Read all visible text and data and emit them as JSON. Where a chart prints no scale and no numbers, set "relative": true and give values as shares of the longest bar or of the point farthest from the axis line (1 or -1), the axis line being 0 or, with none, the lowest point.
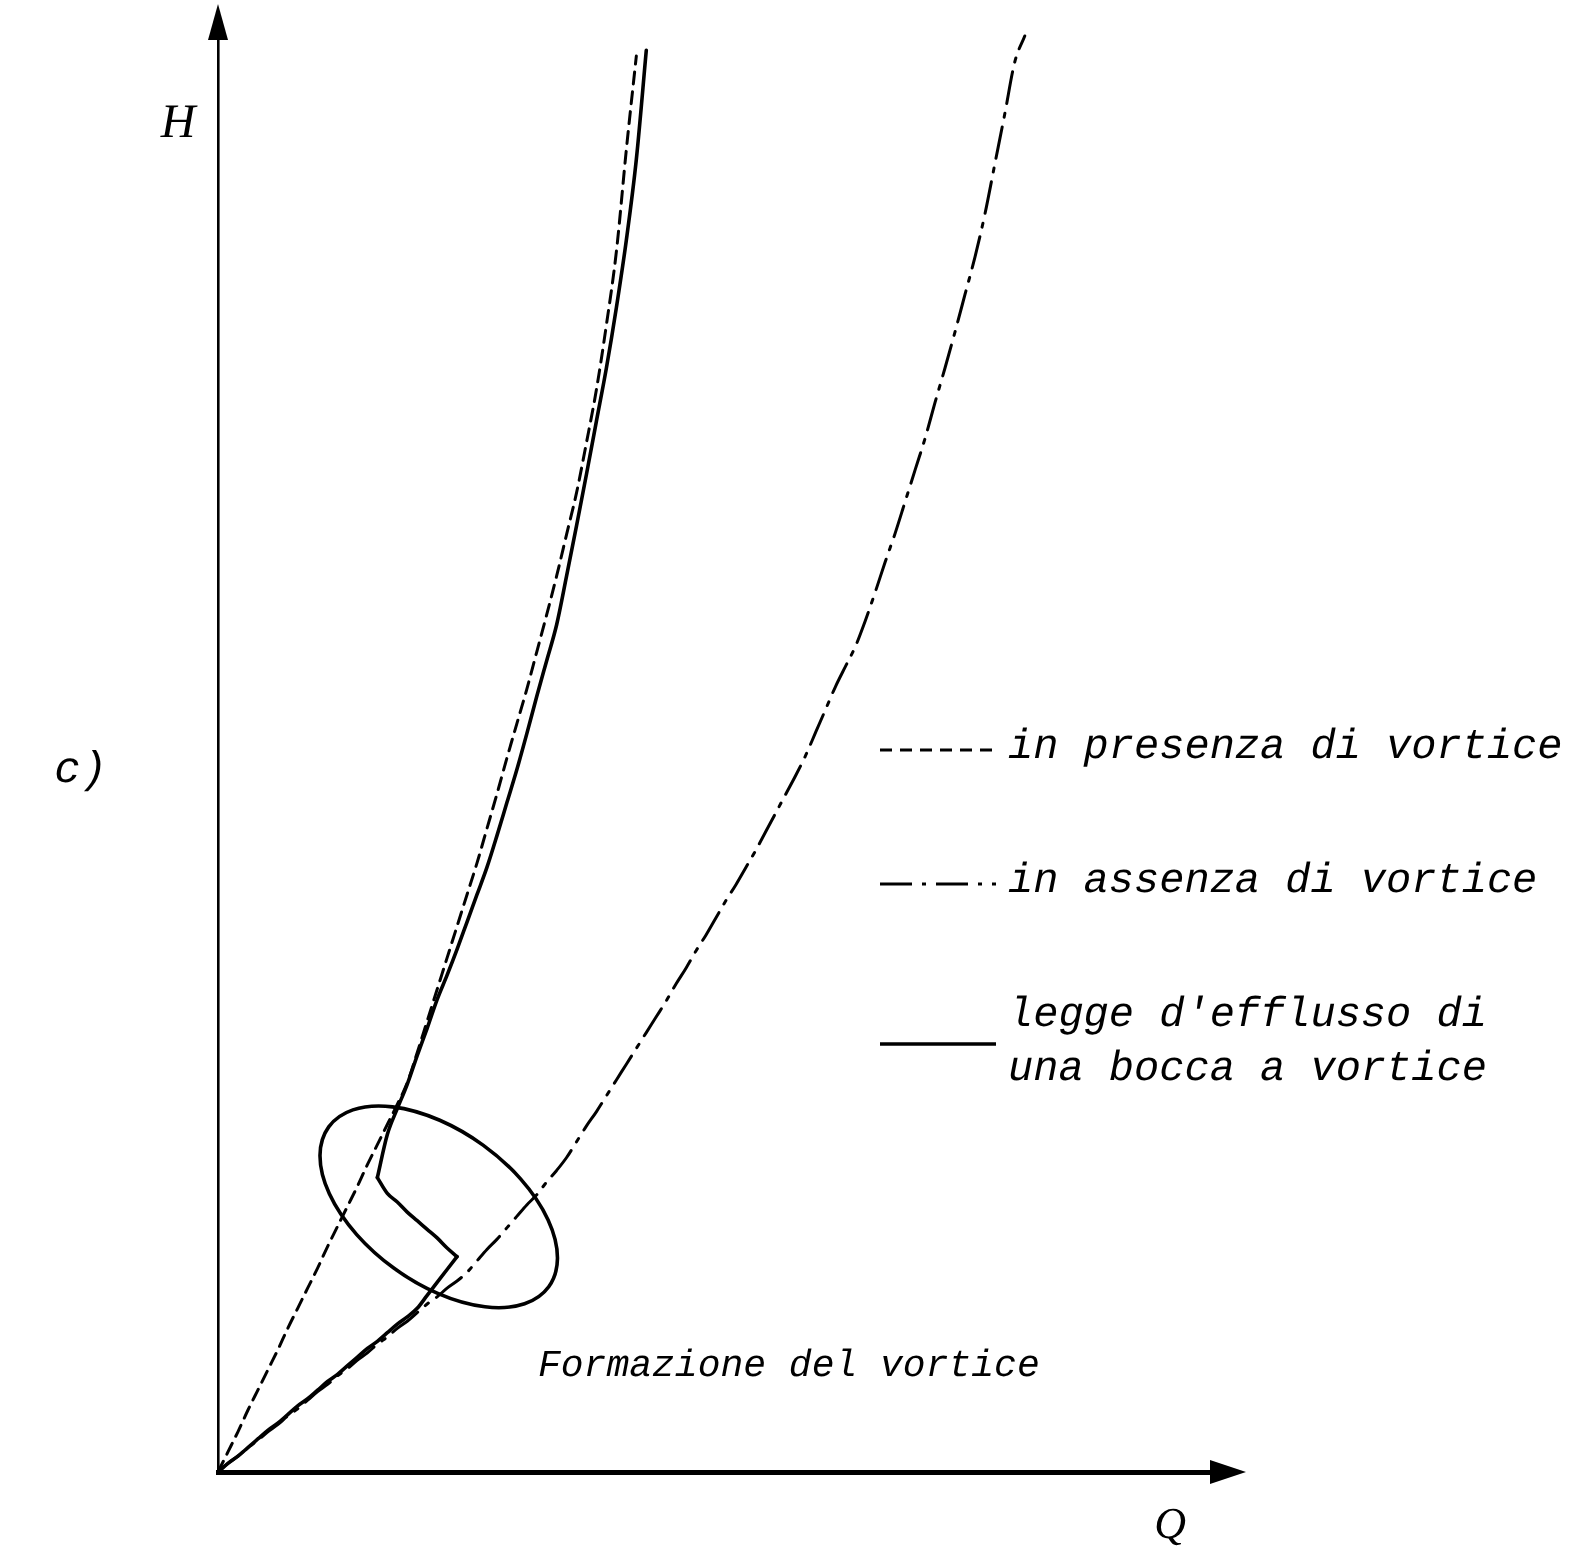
{
  "chart_data": {
    "type": "line",
    "title": "c)",
    "xlabel": "Q",
    "ylabel": "H",
    "relative": true,
    "marker": "none",
    "legend": "right",
    "categories": [
      null,
      null,
      null,
      null,
      null,
      null,
      null,
      null,
      null,
      null,
      null,
      null,
      null,
      null,
      null,
      null,
      null,
      null,
      null,
      null,
      null,
      null,
      null,
      null,
      null,
      null,
      null,
      null,
      null,
      null,
      null,
      null,
      null,
      null,
      null,
      null,
      null,
      null,
      null,
      null,
      null,
      null,
      null,
      null,
      null,
      null,
      null,
      null,
      null,
      null,
      null,
      null,
      null,
      null,
      null,
      null,
      null,
      null,
      null,
      null,
      null,
      null,
      null,
      null,
      null,
      null,
      null,
      null,
      null,
      null,
      null,
      null,
      null,
      null,
      null,
      null,
      null,
      null,
      null,
      null,
      null,
      null,
      null,
      null,
      null,
      null,
      null,
      null,
      null,
      null,
      null,
      null,
      null,
      null,
      null,
      null,
      null,
      null,
      null,
      null,
      null
    ],
    "series": [
      {
        "name": "in presenza di vortice",
        "color": "#000000",
        "line_style": "dashed",
        "values": [
          0,
          0.014,
          0.028,
          0.043,
          0.057,
          0.071,
          0.085,
          0.1,
          0.114,
          0.128,
          0.142,
          0.157,
          0.171,
          0.185,
          0.199,
          0.214,
          0.228,
          0.242,
          0.256,
          0.271,
          0.292,
          0.314,
          0.336,
          0.358,
          0.38,
          0.402,
          0.424,
          0.448,
          0.472,
          0.497,
          0.521,
          0.545,
          0.571,
          0.597,
          0.624,
          0.653,
          0.682,
          0.717,
          0.754,
          0.799,
          0.85,
          0.921,
          0.986,
          null,
          null,
          null,
          null,
          null,
          null,
          null,
          null,
          null,
          null,
          null,
          null,
          null,
          null,
          null,
          null,
          null,
          null,
          null,
          null,
          null,
          null,
          null,
          null,
          null,
          null,
          null,
          null,
          null,
          null,
          null,
          null,
          null,
          null,
          null,
          null,
          null,
          null,
          null,
          null,
          null,
          null,
          null,
          null,
          null,
          null,
          null,
          null,
          null,
          null,
          null,
          null,
          null,
          null,
          null,
          null,
          null,
          null
        ]
      },
      {
        "name": "in assenza di vortice",
        "color": "#000000",
        "line_style": "dashdot",
        "values": [
          0,
          0.006,
          0.011,
          0.017,
          0.022,
          0.028,
          0.033,
          0.039,
          0.044,
          0.05,
          0.056,
          0.061,
          0.067,
          0.072,
          0.078,
          0.083,
          0.089,
          0.094,
          0.1,
          0.105,
          0.111,
          0.117,
          0.122,
          0.128,
          0.133,
          0.139,
          0.147,
          0.155,
          0.162,
          0.17,
          0.178,
          0.186,
          0.193,
          0.202,
          0.21,
          0.219,
          0.23,
          0.241,
          0.251,
          0.262,
          0.273,
          0.284,
          0.295,
          0.306,
          0.317,
          0.328,
          0.34,
          0.351,
          0.363,
          0.374,
          0.386,
          0.398,
          0.409,
          0.421,
          0.433,
          0.446,
          0.459,
          0.472,
          0.485,
          0.499,
          0.515,
          0.531,
          0.547,
          0.561,
          0.575,
          0.593,
          0.613,
          0.634,
          0.654,
          0.676,
          0.698,
          0.72,
          0.745,
          0.769,
          0.794,
          0.82,
          0.846,
          0.876,
          0.911,
          0.946,
          0.982,
          1.0,
          null,
          null,
          null,
          null,
          null,
          null,
          null,
          null,
          null,
          null,
          null,
          null,
          null,
          null,
          null,
          null,
          null,
          null,
          null
        ]
      },
      {
        "name": "legge d'efflusso di una bocca a vortice",
        "color": "#000000",
        "line_style": "solid",
        "values": [
          0,
          0.006,
          0.011,
          0.017,
          0.023,
          0.029,
          0.034,
          0.04,
          0.046,
          0.051,
          0.057,
          0.063,
          0.068,
          0.074,
          0.08,
          0.086,
          0.091,
          0.097,
          0.103,
          0.108,
          0.114,
          0.123,
          0.132,
          0.141,
          0.15,
          null,
          null,
          null,
          null,
          null,
          null,
          null,
          null,
          null,
          null,
          null,
          null,
          null,
          null,
          null,
          null,
          null,
          null,
          null,
          null,
          null,
          null,
          null,
          null,
          null,
          null,
          null,
          null,
          null,
          null,
          null,
          null,
          null,
          null,
          null,
          null,
          null,
          null,
          null,
          null,
          null,
          null,
          null,
          null,
          null,
          null,
          null,
          null,
          null,
          null,
          null,
          null,
          null,
          null,
          null,
          null,
          null,
          null,
          null,
          null,
          null,
          null,
          null,
          null,
          null,
          null,
          null,
          null,
          null,
          null,
          null,
          null,
          null,
          null,
          null,
          null
        ]
      },
      {
        "color": "#000000",
        "line_style": "solid",
        "values": [
          null,
          null,
          null,
          null,
          null,
          null,
          null,
          null,
          null,
          null,
          null,
          null,
          null,
          null,
          null,
          null,
          0.205,
          0.194,
          0.188,
          0.181,
          0.175,
          0.169,
          0.163,
          0.156,
          0.15,
          null,
          null,
          null,
          null,
          null,
          null,
          null,
          null,
          null,
          null,
          null,
          null,
          null,
          null,
          null,
          null,
          null,
          null,
          null,
          null,
          null,
          null,
          null,
          null,
          null,
          null,
          null,
          null,
          null,
          null,
          null,
          null,
          null,
          null,
          null,
          null,
          null,
          null,
          null,
          null,
          null,
          null,
          null,
          null,
          null,
          null,
          null,
          null,
          null,
          null,
          null,
          null,
          null,
          null,
          null,
          null,
          null,
          null,
          null,
          null,
          null,
          null,
          null,
          null,
          null,
          null,
          null,
          null,
          null,
          null,
          null,
          null,
          null,
          null,
          null,
          null
        ]
      },
      {
        "color": "#000000",
        "line_style": "solid",
        "values": [
          null,
          null,
          null,
          null,
          null,
          null,
          null,
          null,
          null,
          null,
          null,
          null,
          null,
          null,
          null,
          null,
          0.205,
          0.235,
          0.253,
          0.27,
          0.29,
          0.309,
          0.329,
          0.346,
          0.364,
          0.383,
          0.402,
          0.421,
          0.443,
          0.466,
          0.489,
          0.514,
          0.54,
          0.565,
          0.59,
          0.624,
          0.659,
          0.695,
          0.732,
          0.769,
          0.811,
          0.858,
          0.914,
          0.99,
          null,
          null,
          null,
          null,
          null,
          null,
          null,
          null,
          null,
          null,
          null,
          null,
          null,
          null,
          null,
          null,
          null,
          null,
          null,
          null,
          null,
          null,
          null,
          null,
          null,
          null,
          null,
          null,
          null,
          null,
          null,
          null,
          null,
          null,
          null,
          null,
          null,
          null,
          null,
          null,
          null,
          null,
          null,
          null,
          null,
          null,
          null,
          null,
          null,
          null,
          null,
          null,
          null,
          null,
          null,
          null,
          null
        ]
      }
    ],
    "annotations": [
      "Formazione del vortice"
    ]
  }
}
